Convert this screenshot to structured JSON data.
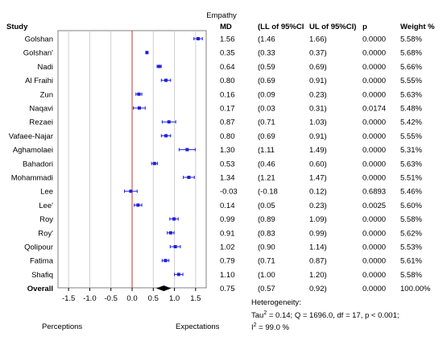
{
  "chart_data": {
    "type": "forest",
    "title": "Empathy",
    "columns": [
      "Study",
      "MD",
      "(LL of 95%CI",
      "UL of 95%CI)",
      "p",
      "Weight %"
    ],
    "studies": [
      {
        "name": "Golshan",
        "md": 1.56,
        "ll": 1.46,
        "ul": 1.66,
        "p": "0.0000",
        "weight": "5.58%",
        "md_text": "1.56",
        "ll_text": "(1.46",
        "ul_text": "1.66)"
      },
      {
        "name": "Golshan'",
        "md": 0.35,
        "ll": 0.33,
        "ul": 0.37,
        "p": "0.0000",
        "weight": "5.68%",
        "md_text": "0.35",
        "ll_text": "(0.33",
        "ul_text": "0.37)"
      },
      {
        "name": "Nadi",
        "md": 0.64,
        "ll": 0.59,
        "ul": 0.69,
        "p": "0.0000",
        "weight": "5.66%",
        "md_text": "0.64",
        "ll_text": "(0.59",
        "ul_text": "0.69)"
      },
      {
        "name": "Al Fraihi",
        "md": 0.8,
        "ll": 0.69,
        "ul": 0.91,
        "p": "0.0000",
        "weight": "5.55%",
        "md_text": "0.80",
        "ll_text": "(0.69",
        "ul_text": "0.91)"
      },
      {
        "name": "Zun",
        "md": 0.16,
        "ll": 0.09,
        "ul": 0.23,
        "p": "0.0000",
        "weight": "5.63%",
        "md_text": "0.16",
        "ll_text": "(0.09",
        "ul_text": "0.23)"
      },
      {
        "name": "Naqavi",
        "md": 0.17,
        "ll": 0.03,
        "ul": 0.31,
        "p": "0.0174",
        "weight": "5.48%",
        "md_text": "0.17",
        "ll_text": "(0.03",
        "ul_text": "0.31)"
      },
      {
        "name": "Rezaei",
        "md": 0.87,
        "ll": 0.71,
        "ul": 1.03,
        "p": "0.0000",
        "weight": "5.42%",
        "md_text": "0.87",
        "ll_text": "(0.71",
        "ul_text": "1.03)"
      },
      {
        "name": "Vafaee-Najar",
        "md": 0.8,
        "ll": 0.69,
        "ul": 0.91,
        "p": "0.0000",
        "weight": "5.55%",
        "md_text": "0.80",
        "ll_text": "(0.69",
        "ul_text": "0.91)"
      },
      {
        "name": "Aghamolaei",
        "md": 1.3,
        "ll": 1.11,
        "ul": 1.49,
        "p": "0.0000",
        "weight": "5.31%",
        "md_text": "1.30",
        "ll_text": "(1.11",
        "ul_text": "1.49)"
      },
      {
        "name": "Bahadori",
        "md": 0.53,
        "ll": 0.46,
        "ul": 0.6,
        "p": "0.0000",
        "weight": "5.63%",
        "md_text": "0.53",
        "ll_text": "(0.46",
        "ul_text": "0.60)"
      },
      {
        "name": "Mohammadi",
        "md": 1.34,
        "ll": 1.21,
        "ul": 1.47,
        "p": "0.0000",
        "weight": "5.51%",
        "md_text": "1.34",
        "ll_text": "(1.21",
        "ul_text": "1.47)"
      },
      {
        "name": "Lee",
        "md": -0.03,
        "ll": -0.18,
        "ul": 0.12,
        "p": "0.6893",
        "weight": "5.46%",
        "md_text": "-0.03",
        "ll_text": "(-0.18",
        "ul_text": "0.12)"
      },
      {
        "name": "Lee'",
        "md": 0.14,
        "ll": 0.05,
        "ul": 0.23,
        "p": "0.0025",
        "weight": "5.60%",
        "md_text": "0.14",
        "ll_text": "(0.05",
        "ul_text": "0.23)"
      },
      {
        "name": "Roy",
        "md": 0.99,
        "ll": 0.89,
        "ul": 1.09,
        "p": "0.0000",
        "weight": "5.58%",
        "md_text": "0.99",
        "ll_text": "(0.89",
        "ul_text": "1.09)"
      },
      {
        "name": "Roy'",
        "md": 0.91,
        "ll": 0.83,
        "ul": 0.99,
        "p": "0.0000",
        "weight": "5.62%",
        "md_text": "0.91",
        "ll_text": "(0.83",
        "ul_text": "0.99)"
      },
      {
        "name": "Qolipour",
        "md": 1.02,
        "ll": 0.9,
        "ul": 1.14,
        "p": "0.0000",
        "weight": "5.53%",
        "md_text": "1.02",
        "ll_text": "(0.90",
        "ul_text": "1.14)"
      },
      {
        "name": "Fatima",
        "md": 0.79,
        "ll": 0.71,
        "ul": 0.87,
        "p": "0.0000",
        "weight": "5.61%",
        "md_text": "0.79",
        "ll_text": "(0.71",
        "ul_text": "0.87)"
      },
      {
        "name": "Shafiq",
        "md": 1.1,
        "ll": 1.0,
        "ul": 1.2,
        "p": "0.0000",
        "weight": "5.58%",
        "md_text": "1.10",
        "ll_text": "(1.00",
        "ul_text": "1.20)"
      }
    ],
    "overall": {
      "name": "Overall",
      "md": 0.75,
      "ll": 0.57,
      "ul": 0.92,
      "p": "0.0000",
      "weight": "100.00%",
      "md_text": "0.75",
      "ll_text": "(0.57",
      "ul_text": "0.92)"
    },
    "x_ticks": [
      -1.5,
      -1.0,
      -0.5,
      0.0,
      0.5,
      1.0,
      1.5
    ],
    "x_tick_labels": [
      "-1.5",
      "-1.0",
      "-0.5",
      "0.0",
      "0.5",
      "1.0",
      "1.5"
    ],
    "xlim": [
      -1.75,
      1.75
    ],
    "reference_line": 0,
    "left_label": "Perceptions",
    "right_label": "Expectations",
    "heterogeneity": {
      "label": "Heterogeneity:",
      "tau_prefix": "Tau",
      "tau_rest": " = 0.14; Q = 1696.0, df = 17, p < 0.001;",
      "i2_prefix": "I",
      "i2_rest": " = 99.0 %",
      "superscript": "2"
    },
    "colors": {
      "study_marker": "#1f1fe0",
      "overall_marker": "#000000",
      "reference_line": "#c0392b",
      "grid": "#d0d0d0",
      "frame": "#808080"
    }
  }
}
